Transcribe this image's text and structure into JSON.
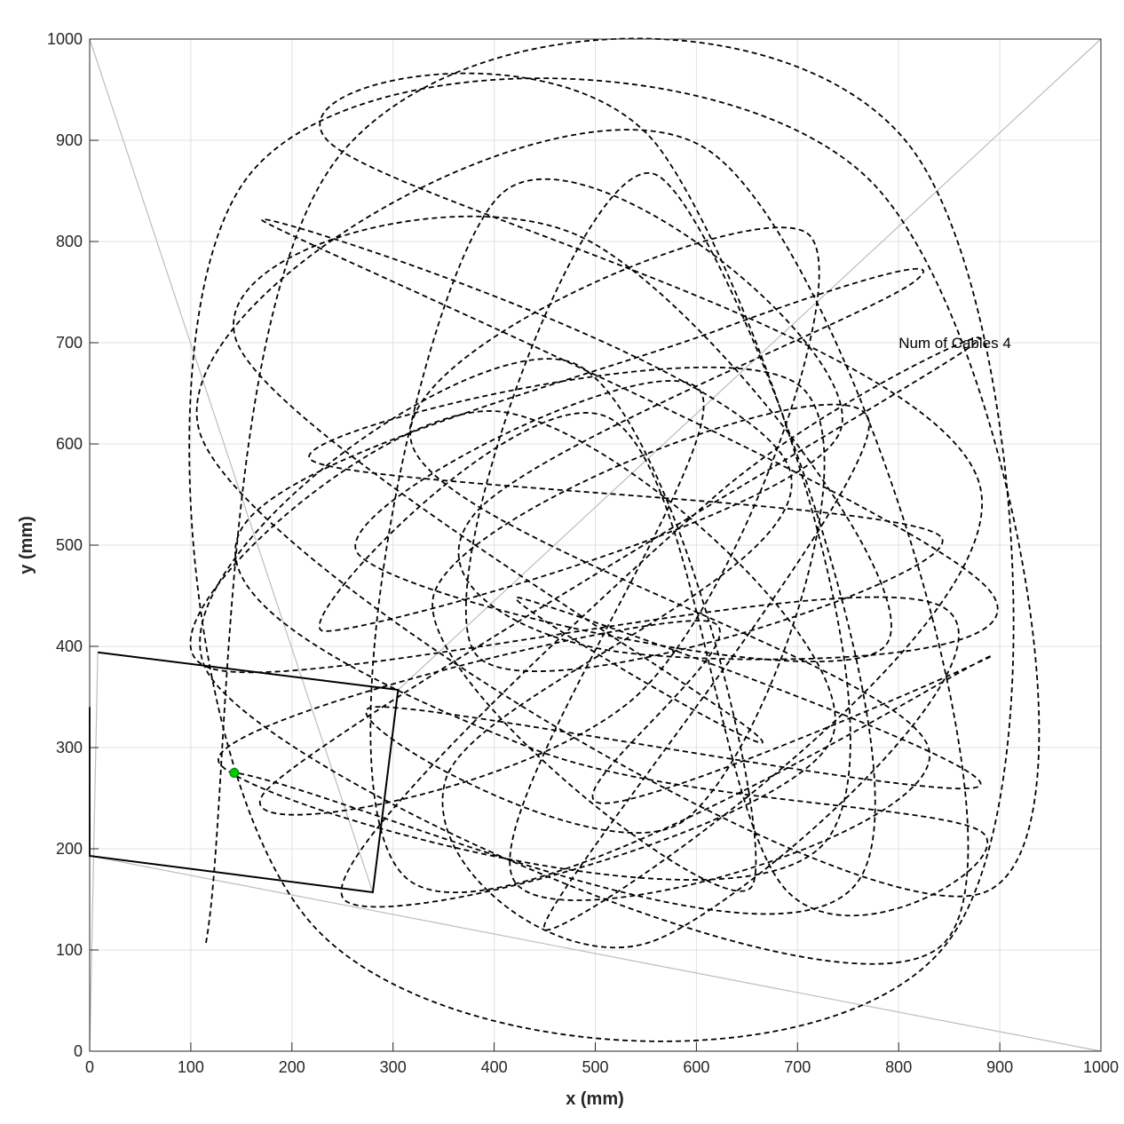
{
  "chart_data": {
    "type": "line",
    "title": "",
    "xlabel": "x (mm)",
    "ylabel": "y (mm)",
    "xlim": [
      0,
      1000
    ],
    "ylim": [
      0,
      1000
    ],
    "xticks": [
      "0",
      "100",
      "200",
      "300",
      "400",
      "500",
      "600",
      "700",
      "800",
      "900",
      "1000"
    ],
    "yticks": [
      "0",
      "100",
      "200",
      "300",
      "400",
      "500",
      "600",
      "700",
      "800",
      "900",
      "1000"
    ],
    "grid": true,
    "annotation": {
      "text": "Num of Cables 4",
      "x": 800,
      "y": 700
    },
    "cables": [
      {
        "from": [
          0,
          1000
        ],
        "to": [
          280,
          157
        ]
      },
      {
        "from": [
          1000,
          1000
        ],
        "to": [
          305,
          357
        ]
      },
      {
        "from": [
          1000,
          0
        ],
        "to": [
          0,
          193
        ]
      },
      {
        "from": [
          0,
          0
        ],
        "to": [
          8,
          394
        ]
      }
    ],
    "platform": [
      [
        8,
        394
      ],
      [
        305,
        357
      ],
      [
        280,
        157
      ],
      [
        0,
        193
      ],
      [
        0,
        340
      ]
    ],
    "trajectory_points": [
      [
        115,
        107
      ],
      [
        253,
        892
      ],
      [
        812,
        893
      ],
      [
        848,
        107
      ],
      [
        222,
        123
      ],
      [
        155,
        862
      ],
      [
        770,
        862
      ],
      [
        885,
        157
      ],
      [
        110,
        608
      ],
      [
        612,
        890
      ],
      [
        845,
        107
      ],
      [
        118,
        372
      ],
      [
        478,
        680
      ],
      [
        655,
        163
      ],
      [
        340,
        450
      ],
      [
        770,
        625
      ],
      [
        450,
        120
      ],
      [
        880,
        560
      ],
      [
        235,
        900
      ],
      [
        565,
        890
      ],
      [
        730,
        210
      ],
      [
        128,
        285
      ],
      [
        610,
        425
      ],
      [
        505,
        245
      ],
      [
        890,
        390
      ],
      [
        312,
        172
      ],
      [
        405,
        845
      ],
      [
        742,
        612
      ],
      [
        232,
        415
      ],
      [
        515,
        625
      ],
      [
        688,
        160
      ],
      [
        880,
        218
      ],
      [
        435,
        300
      ],
      [
        148,
        512
      ],
      [
        620,
        712
      ],
      [
        815,
        760
      ],
      [
        380,
        530
      ],
      [
        520,
        395
      ],
      [
        890,
        455
      ],
      [
        172,
        820
      ],
      [
        692,
        575
      ],
      [
        352,
        268
      ],
      [
        555,
        108
      ],
      [
        845,
        438
      ],
      [
        115,
        380
      ],
      [
        405,
        632
      ],
      [
        735,
        312
      ],
      [
        250,
        152
      ],
      [
        618,
        548
      ],
      [
        862,
        690
      ],
      [
        175,
        258
      ],
      [
        548,
        358
      ],
      [
        712,
        806
      ],
      [
        318,
        602
      ],
      [
        830,
        298
      ],
      [
        420,
        168
      ],
      [
        605,
        650
      ],
      [
        265,
        492
      ],
      [
        788,
        402
      ],
      [
        485,
        805
      ],
      [
        145,
        702
      ],
      [
        660,
        312
      ],
      [
        425,
        448
      ],
      [
        880,
        262
      ],
      [
        280,
        340
      ],
      [
        588,
        228
      ],
      [
        705,
        655
      ],
      [
        218,
        585
      ],
      [
        842,
        508
      ],
      [
        382,
        392
      ],
      [
        562,
        865
      ],
      [
        760,
        168
      ],
      [
        145,
        275
      ]
    ],
    "end_effector": [
      143,
      275
    ],
    "colors": {
      "trajectory": "#000000",
      "cable": "#bdbdbd",
      "platform": "#000000",
      "end_effector": "#00cc00",
      "grid": "#e1e1e1"
    }
  }
}
